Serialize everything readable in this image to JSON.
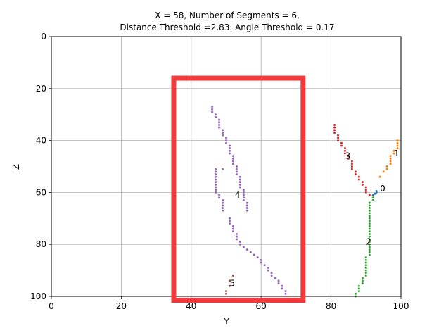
{
  "chart_data": {
    "type": "scatter",
    "title_lines": [
      "X = 58, Number of Segments = 6,",
      "Distance Threshold =2.83. Angle Threshold = 0.17"
    ],
    "xlabel": "Y",
    "ylabel": "Z",
    "xlim": [
      0,
      100
    ],
    "ylim": [
      100,
      0
    ],
    "y_inverted": true,
    "xticks": [
      0,
      20,
      40,
      60,
      80,
      100
    ],
    "yticks": [
      0,
      20,
      40,
      60,
      80,
      100
    ],
    "grid": true,
    "series": [
      {
        "label": "0",
        "color": "#1f77b4",
        "points": [
          [
            92,
            61
          ],
          [
            92.5,
            60.5
          ],
          [
            93,
            60
          ],
          [
            93,
            59.5
          ]
        ],
        "label_pos": [
          94,
          58.5
        ]
      },
      {
        "label": "1",
        "color": "#ff7f0e",
        "points": [
          [
            94,
            54
          ],
          [
            95,
            52
          ],
          [
            96,
            51
          ],
          [
            96,
            50
          ],
          [
            97,
            49
          ],
          [
            97,
            48
          ],
          [
            97,
            47
          ],
          [
            97,
            46
          ],
          [
            98,
            45
          ],
          [
            98,
            44
          ],
          [
            99,
            43
          ],
          [
            99,
            42
          ],
          [
            99,
            41
          ],
          [
            99,
            40
          ]
        ],
        "label_pos": [
          98,
          45
        ]
      },
      {
        "label": "2",
        "color": "#2ca02c",
        "points": [
          [
            87,
            100
          ],
          [
            87,
            99
          ],
          [
            88,
            98
          ],
          [
            88,
            97
          ],
          [
            88,
            96
          ],
          [
            89,
            95
          ],
          [
            89,
            94
          ],
          [
            89,
            93
          ],
          [
            90,
            92
          ],
          [
            90,
            91
          ],
          [
            90,
            90
          ],
          [
            90,
            89
          ],
          [
            90,
            88
          ],
          [
            90,
            87
          ],
          [
            90,
            86
          ],
          [
            90,
            85
          ],
          [
            91,
            84
          ],
          [
            91,
            83
          ],
          [
            91,
            82
          ],
          [
            91,
            81
          ],
          [
            91,
            80
          ],
          [
            91,
            79
          ],
          [
            91,
            78
          ],
          [
            91,
            77
          ],
          [
            91,
            76
          ],
          [
            91,
            75
          ],
          [
            91,
            74
          ],
          [
            91,
            73
          ],
          [
            91,
            72
          ],
          [
            91,
            71
          ],
          [
            91,
            70
          ],
          [
            91,
            69
          ],
          [
            91,
            68
          ],
          [
            91,
            67
          ],
          [
            91,
            66
          ],
          [
            91,
            65
          ],
          [
            91,
            64
          ],
          [
            92,
            63
          ],
          [
            92,
            62
          ]
        ],
        "label_pos": [
          90,
          79
        ]
      },
      {
        "label": "3",
        "color": "#d62728",
        "points": [
          [
            81,
            34
          ],
          [
            81,
            35
          ],
          [
            81,
            36
          ],
          [
            81,
            37
          ],
          [
            82,
            38
          ],
          [
            82,
            39
          ],
          [
            82,
            40
          ],
          [
            83,
            41
          ],
          [
            83,
            42
          ],
          [
            84,
            43
          ],
          [
            84,
            44
          ],
          [
            84,
            45
          ],
          [
            85,
            46
          ],
          [
            85,
            47
          ],
          [
            86,
            48
          ],
          [
            86,
            49
          ],
          [
            86,
            50
          ],
          [
            86,
            51
          ],
          [
            87,
            52
          ],
          [
            87,
            53
          ],
          [
            88,
            54
          ],
          [
            88,
            55
          ],
          [
            89,
            56
          ],
          [
            89,
            57
          ],
          [
            90,
            58
          ],
          [
            90,
            59
          ],
          [
            90,
            60
          ],
          [
            91,
            61
          ]
        ],
        "label_pos": [
          84,
          46
        ]
      },
      {
        "label": "4",
        "color": "#9467bd",
        "points": [
          [
            46,
            27
          ],
          [
            46,
            28
          ],
          [
            46,
            29
          ],
          [
            47,
            30
          ],
          [
            47,
            31
          ],
          [
            48,
            32
          ],
          [
            48,
            33
          ],
          [
            48,
            34
          ],
          [
            48,
            35
          ],
          [
            49,
            36
          ],
          [
            49,
            37
          ],
          [
            49,
            38
          ],
          [
            50,
            39
          ],
          [
            50,
            40
          ],
          [
            50,
            41
          ],
          [
            51,
            42
          ],
          [
            51,
            43
          ],
          [
            51,
            44
          ],
          [
            51,
            45
          ],
          [
            52,
            46
          ],
          [
            52,
            47
          ],
          [
            52,
            48
          ],
          [
            52,
            49
          ],
          [
            53,
            50
          ],
          [
            53,
            51
          ],
          [
            53,
            52
          ],
          [
            53,
            53
          ],
          [
            54,
            54
          ],
          [
            54,
            55
          ],
          [
            54,
            56
          ],
          [
            54,
            57
          ],
          [
            54,
            58
          ],
          [
            55,
            59
          ],
          [
            55,
            60
          ],
          [
            55,
            61
          ],
          [
            55,
            62
          ],
          [
            55,
            63
          ],
          [
            56,
            64
          ],
          [
            56,
            65
          ],
          [
            56,
            66
          ],
          [
            56,
            67
          ],
          [
            47,
            51
          ],
          [
            47,
            52
          ],
          [
            47,
            53
          ],
          [
            47,
            54
          ],
          [
            47,
            55
          ],
          [
            47,
            56
          ],
          [
            47,
            57
          ],
          [
            47,
            58
          ],
          [
            47,
            59
          ],
          [
            47,
            60
          ],
          [
            48,
            61
          ],
          [
            48,
            62
          ],
          [
            49,
            63
          ],
          [
            49,
            64
          ],
          [
            49,
            65
          ],
          [
            49,
            66
          ],
          [
            49,
            67
          ],
          [
            49,
            51
          ],
          [
            51,
            70
          ],
          [
            51,
            71
          ],
          [
            51,
            72
          ],
          [
            52,
            73
          ],
          [
            52,
            74
          ],
          [
            52,
            75
          ],
          [
            53,
            76
          ],
          [
            53,
            77
          ],
          [
            53,
            78
          ],
          [
            54,
            79
          ],
          [
            54,
            80
          ],
          [
            55,
            81
          ],
          [
            56,
            82
          ],
          [
            57,
            83
          ],
          [
            58,
            84
          ],
          [
            59,
            85
          ],
          [
            60,
            86
          ],
          [
            60,
            87
          ],
          [
            61,
            88
          ],
          [
            62,
            89
          ],
          [
            62,
            90
          ],
          [
            63,
            91
          ],
          [
            63,
            92
          ],
          [
            64,
            93
          ],
          [
            65,
            94
          ],
          [
            65,
            95
          ],
          [
            66,
            96
          ],
          [
            66,
            97
          ],
          [
            67,
            98
          ],
          [
            67,
            99
          ]
        ],
        "label_pos": [
          52.5,
          61
        ]
      },
      {
        "label": "5",
        "color": "#8c564b",
        "points": [
          [
            52,
            92
          ],
          [
            51,
            94
          ],
          [
            51,
            96
          ],
          [
            50,
            98
          ],
          [
            50,
            99
          ]
        ],
        "label_pos": [
          51,
          95
        ]
      }
    ],
    "annotation_box": {
      "color": "#ef3b3b",
      "x_range": [
        35,
        72
      ],
      "z_range": [
        16,
        101.5
      ]
    }
  }
}
